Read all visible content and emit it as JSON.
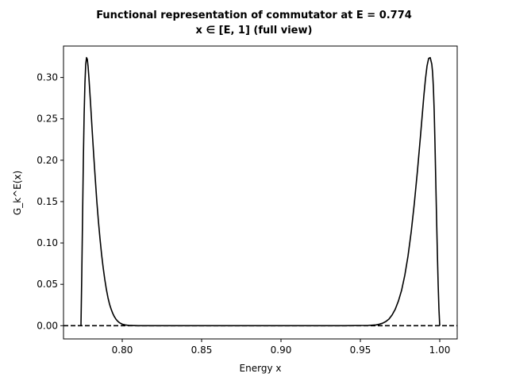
{
  "chart_data": {
    "type": "line",
    "title": "Functional representation of commutator at E = 0.774",
    "subtitle": "x ∈ [E, 1] (full view)",
    "xlabel": "Energy x",
    "ylabel": "G_k^E(x)",
    "xlim": [
      0.763,
      1.011
    ],
    "ylim": [
      -0.016,
      0.338
    ],
    "x_ticks": [
      0.8,
      0.85,
      0.9,
      0.95,
      1.0
    ],
    "x_tick_labels": [
      "0.80",
      "0.85",
      "0.90",
      "0.95",
      "1.00"
    ],
    "y_ticks": [
      0.0,
      0.05,
      0.1,
      0.15,
      0.2,
      0.25,
      0.3
    ],
    "y_tick_labels": [
      "0.00",
      "0.05",
      "0.10",
      "0.15",
      "0.20",
      "0.25",
      "0.30"
    ],
    "grid": false,
    "reference_line": {
      "y": 0.0,
      "style": "dashed",
      "color": "#000000"
    },
    "series": [
      {
        "color": "#000000",
        "x": [
          0.774,
          0.7745,
          0.775,
          0.7755,
          0.776,
          0.7765,
          0.777,
          0.7775,
          0.778,
          0.7785,
          0.779,
          0.7795,
          0.78,
          0.781,
          0.782,
          0.783,
          0.784,
          0.785,
          0.786,
          0.787,
          0.788,
          0.789,
          0.79,
          0.791,
          0.792,
          0.793,
          0.794,
          0.795,
          0.796,
          0.797,
          0.798,
          0.799,
          0.8,
          0.801,
          0.802,
          0.803,
          0.804,
          0.805,
          0.806,
          0.807,
          0.808,
          0.81,
          0.815,
          0.82,
          0.83,
          0.85,
          0.88,
          0.91,
          0.94,
          0.955,
          0.96,
          0.962,
          0.964,
          0.966,
          0.968,
          0.97,
          0.972,
          0.974,
          0.976,
          0.978,
          0.98,
          0.982,
          0.984,
          0.986,
          0.988,
          0.99,
          0.991,
          0.992,
          0.993,
          0.994,
          0.995,
          0.9955,
          0.996,
          0.9965,
          0.997,
          0.9975,
          0.998,
          0.9985,
          0.999,
          0.9995,
          1.0
        ],
        "y": [
          0.0,
          0.06,
          0.13,
          0.2,
          0.255,
          0.293,
          0.316,
          0.324,
          0.322,
          0.313,
          0.3,
          0.285,
          0.27,
          0.238,
          0.207,
          0.178,
          0.15,
          0.126,
          0.105,
          0.086,
          0.07,
          0.056,
          0.044,
          0.034,
          0.026,
          0.02,
          0.015,
          0.011,
          0.008,
          0.0057,
          0.004,
          0.0028,
          0.0019,
          0.0013,
          0.0009,
          0.0006,
          0.0004,
          0.0003,
          0.0002,
          0.00015,
          0.0001,
          5e-05,
          1e-05,
          0.0,
          0.0,
          0.0,
          0.0,
          0.0,
          0.0,
          0.0003,
          0.001,
          0.0018,
          0.003,
          0.005,
          0.008,
          0.013,
          0.02,
          0.03,
          0.043,
          0.061,
          0.084,
          0.113,
          0.148,
          0.188,
          0.232,
          0.278,
          0.298,
          0.314,
          0.323,
          0.324,
          0.316,
          0.306,
          0.288,
          0.26,
          0.22,
          0.175,
          0.13,
          0.088,
          0.05,
          0.02,
          0.0
        ]
      }
    ]
  }
}
